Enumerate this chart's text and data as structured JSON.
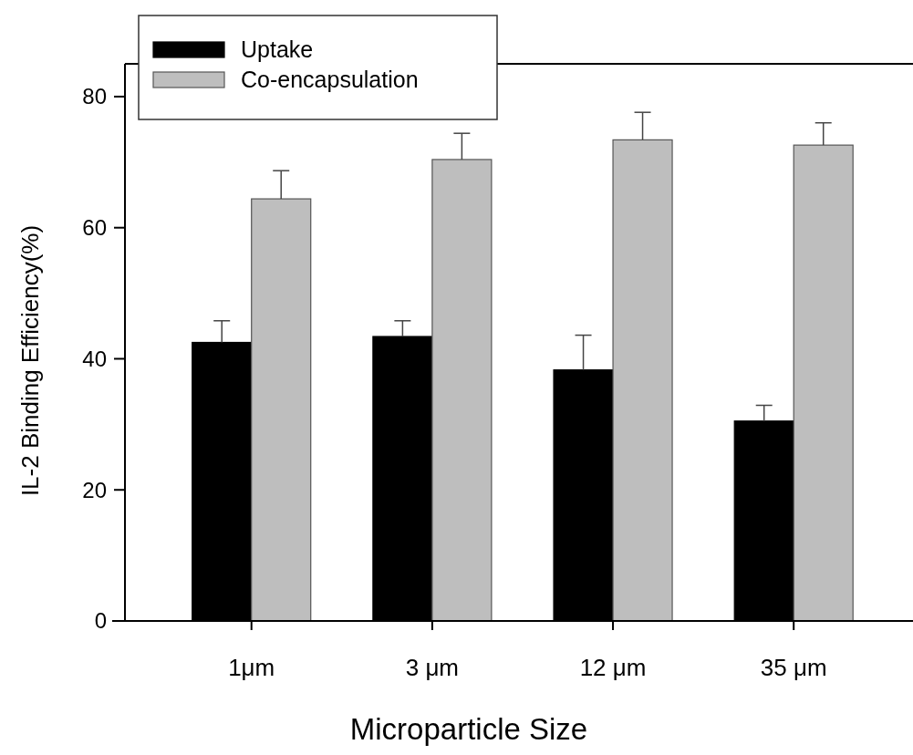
{
  "chart_data": {
    "type": "bar",
    "xlabel": "Microparticle Size",
    "ylabel": "IL-2 Binding Efficiency(%)",
    "categories": [
      "1μm",
      "3 μm",
      "12 μm",
      "35 μm"
    ],
    "series": [
      {
        "name": "Uptake",
        "color": "#000000",
        "values": [
          42.5,
          43.4,
          38.3,
          30.5
        ],
        "errors": [
          [
            42.5,
            45.8
          ],
          [
            43.4,
            45.8
          ],
          [
            38.3,
            43.6
          ],
          [
            30.5,
            32.9
          ]
        ]
      },
      {
        "name": "Co-encapsulation",
        "color": "#bebebe",
        "values": [
          64.4,
          70.4,
          73.4,
          72.6
        ],
        "errors": [
          [
            64.4,
            68.7
          ],
          [
            70.4,
            74.4
          ],
          [
            73.4,
            77.6
          ],
          [
            72.6,
            76.0
          ]
        ]
      }
    ],
    "ylim": [
      0,
      85
    ],
    "yticks": [
      0,
      20,
      40,
      60,
      80
    ],
    "legend": "top left"
  }
}
